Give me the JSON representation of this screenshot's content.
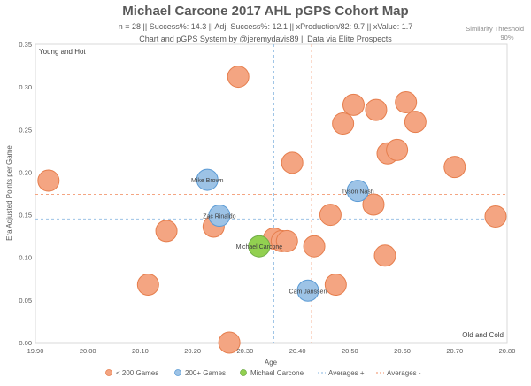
{
  "title": "Michael Carcone 2017 AHL pGPS Cohort Map",
  "subtitle1": "n = 28 || Success%: 14.3 || Adj. Success%: 12.1 || xProduction/82: 9.7 || xValue: 1.7",
  "subtitle2": "Chart and pGPS System by @jeremydavis89 || Data via Elite Prospects",
  "similarity_label": "Similarity Threshold",
  "similarity_value": "90%",
  "corner_top_left": "Young and Hot",
  "corner_bottom_right": "Old and Cold",
  "colors": {
    "under200": "#f4a582",
    "under200_stroke": "#e67e4d",
    "over200": "#9dc3e6",
    "over200_stroke": "#5b9bd5",
    "player": "#92d050",
    "player_stroke": "#70ad47",
    "avg_plus": "#9dc3e6",
    "avg_minus": "#f4a582"
  },
  "chart_data": {
    "type": "scatter",
    "xlabel": "Age",
    "ylabel": "Era Adjusted Points per Game",
    "xlim": [
      19.9,
      20.8
    ],
    "ylim": [
      0.0,
      0.35
    ],
    "x_ticks": [
      "19.90",
      "20.00",
      "20.10",
      "20.20",
      "20.30",
      "20.40",
      "20.50",
      "20.60",
      "20.70",
      "20.80"
    ],
    "y_ticks": [
      "0.00",
      "0.05",
      "0.10",
      "0.15",
      "0.20",
      "0.25",
      "0.30",
      "0.35"
    ],
    "grid": false,
    "legend_position": "bottom",
    "series": [
      {
        "name": "< 200 Games",
        "color_key": "under200",
        "points": [
          {
            "x": 19.925,
            "y": 0.19
          },
          {
            "x": 20.115,
            "y": 0.068
          },
          {
            "x": 20.15,
            "y": 0.131
          },
          {
            "x": 20.24,
            "y": 0.136
          },
          {
            "x": 20.27,
            "y": 0.0
          },
          {
            "x": 20.287,
            "y": 0.312
          },
          {
            "x": 20.355,
            "y": 0.122
          },
          {
            "x": 20.37,
            "y": 0.119
          },
          {
            "x": 20.38,
            "y": 0.119
          },
          {
            "x": 20.39,
            "y": 0.211
          },
          {
            "x": 20.432,
            "y": 0.113
          },
          {
            "x": 20.463,
            "y": 0.15
          },
          {
            "x": 20.473,
            "y": 0.068
          },
          {
            "x": 20.487,
            "y": 0.257
          },
          {
            "x": 20.507,
            "y": 0.279
          },
          {
            "x": 20.545,
            "y": 0.162
          },
          {
            "x": 20.55,
            "y": 0.273
          },
          {
            "x": 20.567,
            "y": 0.102
          },
          {
            "x": 20.572,
            "y": 0.222
          },
          {
            "x": 20.59,
            "y": 0.226
          },
          {
            "x": 20.607,
            "y": 0.282
          },
          {
            "x": 20.625,
            "y": 0.259
          },
          {
            "x": 20.7,
            "y": 0.206
          },
          {
            "x": 20.778,
            "y": 0.148
          }
        ]
      },
      {
        "name": "200+ Games",
        "color_key": "over200",
        "points": [
          {
            "x": 20.228,
            "y": 0.191,
            "label": "Mike Brown"
          },
          {
            "x": 20.251,
            "y": 0.149,
            "label": "Zac Rinaldo"
          },
          {
            "x": 20.42,
            "y": 0.061,
            "label": "Cam Janssen"
          },
          {
            "x": 20.515,
            "y": 0.178,
            "label": "Tyson Nash"
          }
        ]
      },
      {
        "name": "Michael Carcone",
        "color_key": "player",
        "points": [
          {
            "x": 20.327,
            "y": 0.113,
            "label": "Michael Carcone"
          }
        ]
      },
      {
        "name": "Averages +",
        "color_key": "avg_plus",
        "x_value": 20.355,
        "y_value": 0.145
      },
      {
        "name": "Averages -",
        "color_key": "avg_minus",
        "x_value": 20.427,
        "y_value": 0.174
      }
    ]
  }
}
